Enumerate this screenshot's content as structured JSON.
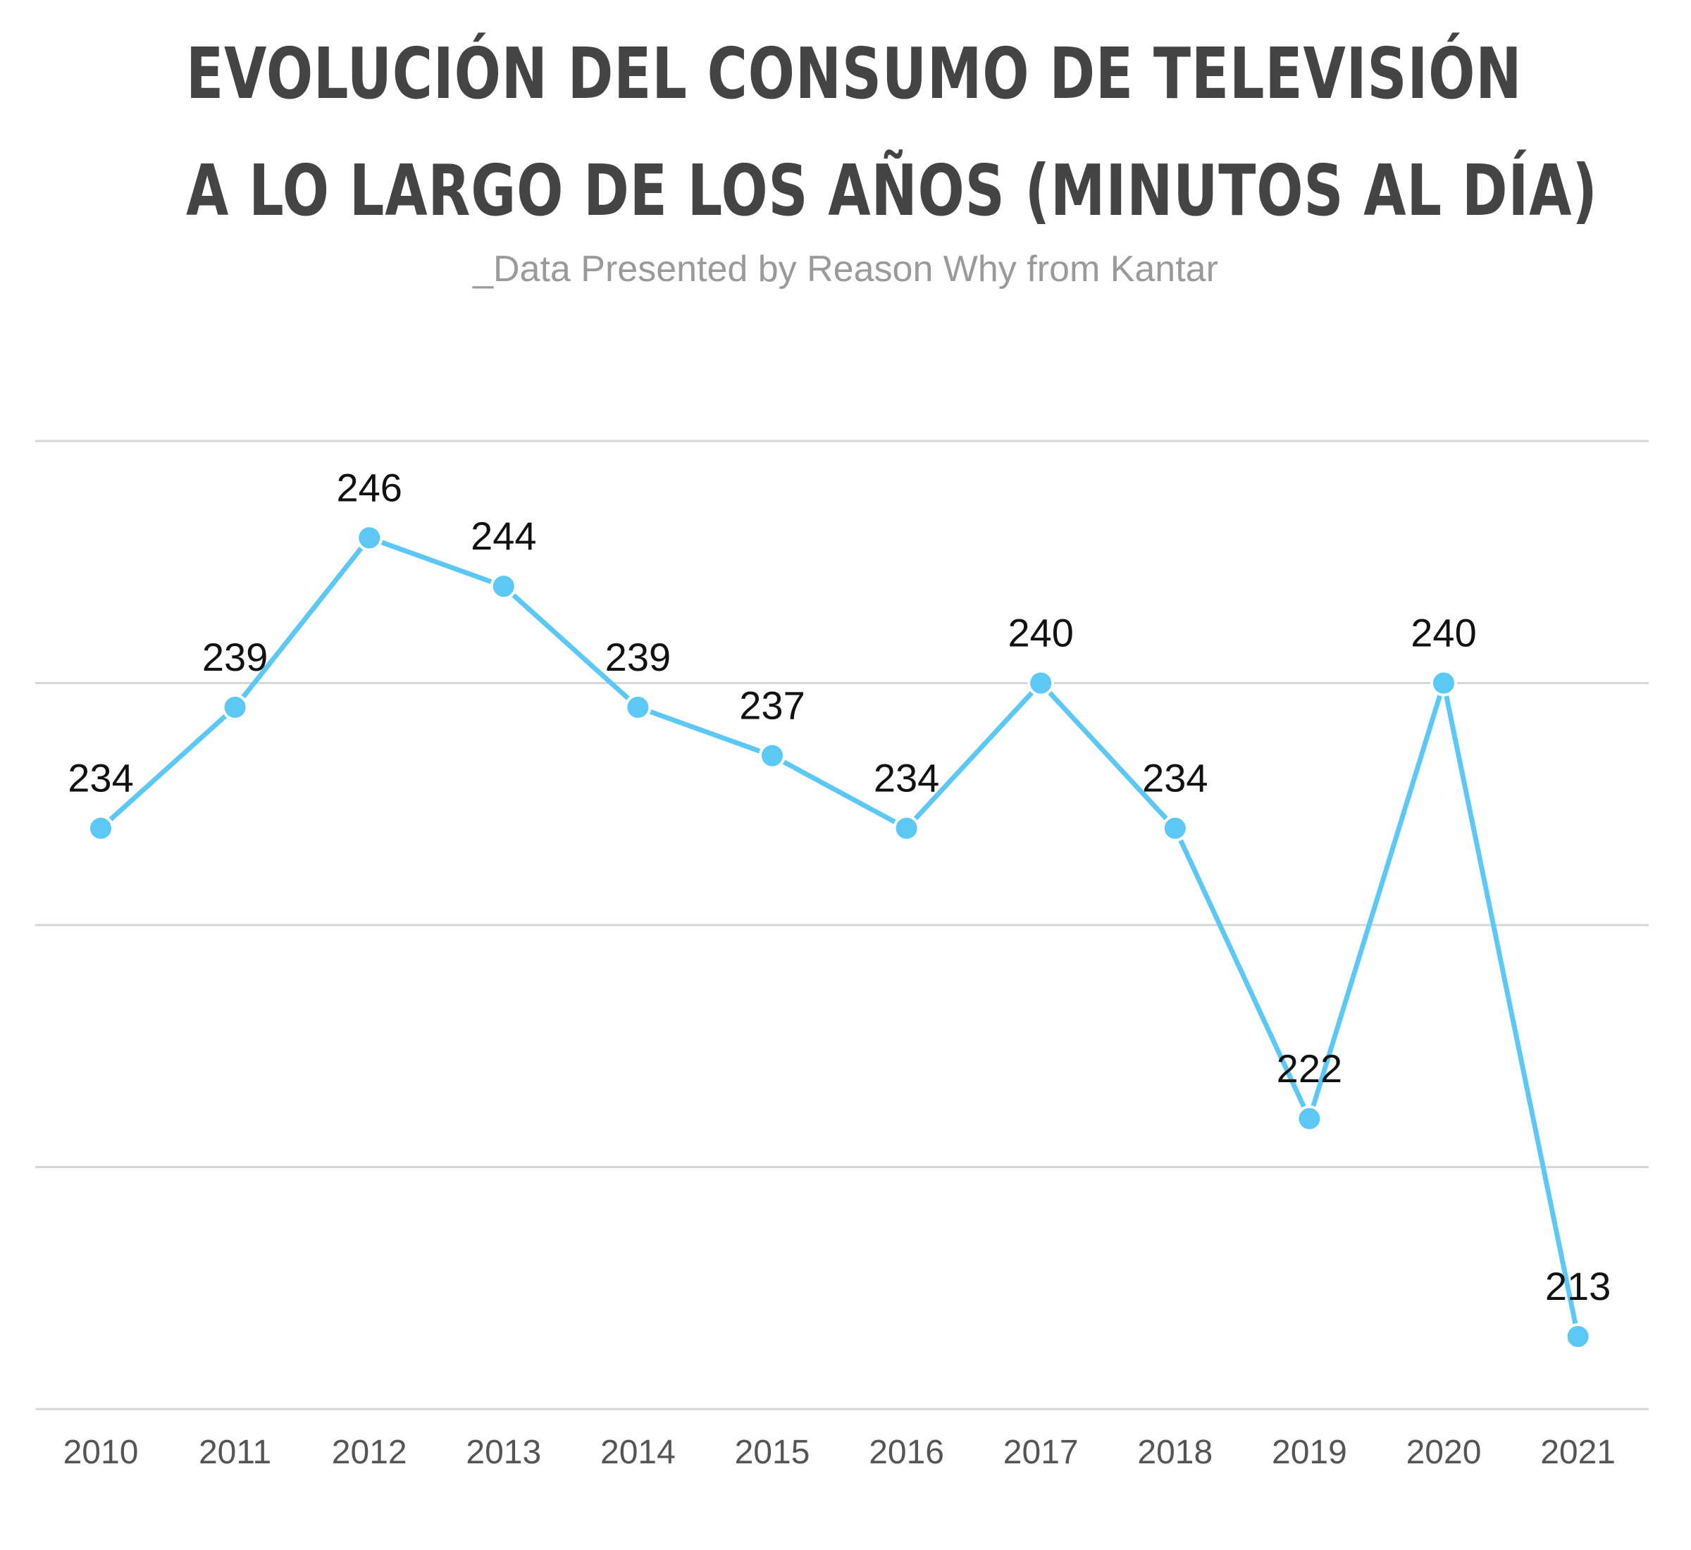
{
  "title": {
    "line1": "EVOLUCIÓN DEL CONSUMO DE TELEVISIÓN",
    "line2": "A LO LARGO DE LOS AÑOS (MINUTOS AL DÍA)"
  },
  "subtitle": "_Data Presented by Reason Why from Kantar",
  "colors": {
    "series": "#5bc8f5",
    "title": "#444444",
    "subtitle": "#9a9a9a",
    "grid": "#d6d6d6"
  },
  "chart_data": {
    "type": "line",
    "title": "EVOLUCIÓN DEL CONSUMO DE TELEVISIÓN A LO LARGO DE LOS AÑOS (MINUTOS AL DÍA)",
    "subtitle": "_Data Presented by Reason Why from Kantar",
    "xlabel": "",
    "ylabel": "",
    "categories": [
      "2010",
      "2011",
      "2012",
      "2013",
      "2014",
      "2015",
      "2016",
      "2017",
      "2018",
      "2019",
      "2020",
      "2021"
    ],
    "series": [
      {
        "values": [
          234,
          239,
          246,
          244,
          239,
          237,
          234,
          240,
          234,
          222,
          240,
          213
        ]
      }
    ],
    "ylim": [
      210,
      250
    ],
    "gridlines": [
      210,
      220,
      230,
      240,
      250
    ],
    "grid": true,
    "y_tick_labels_shown": false,
    "data_labels": true,
    "legend": "none"
  }
}
